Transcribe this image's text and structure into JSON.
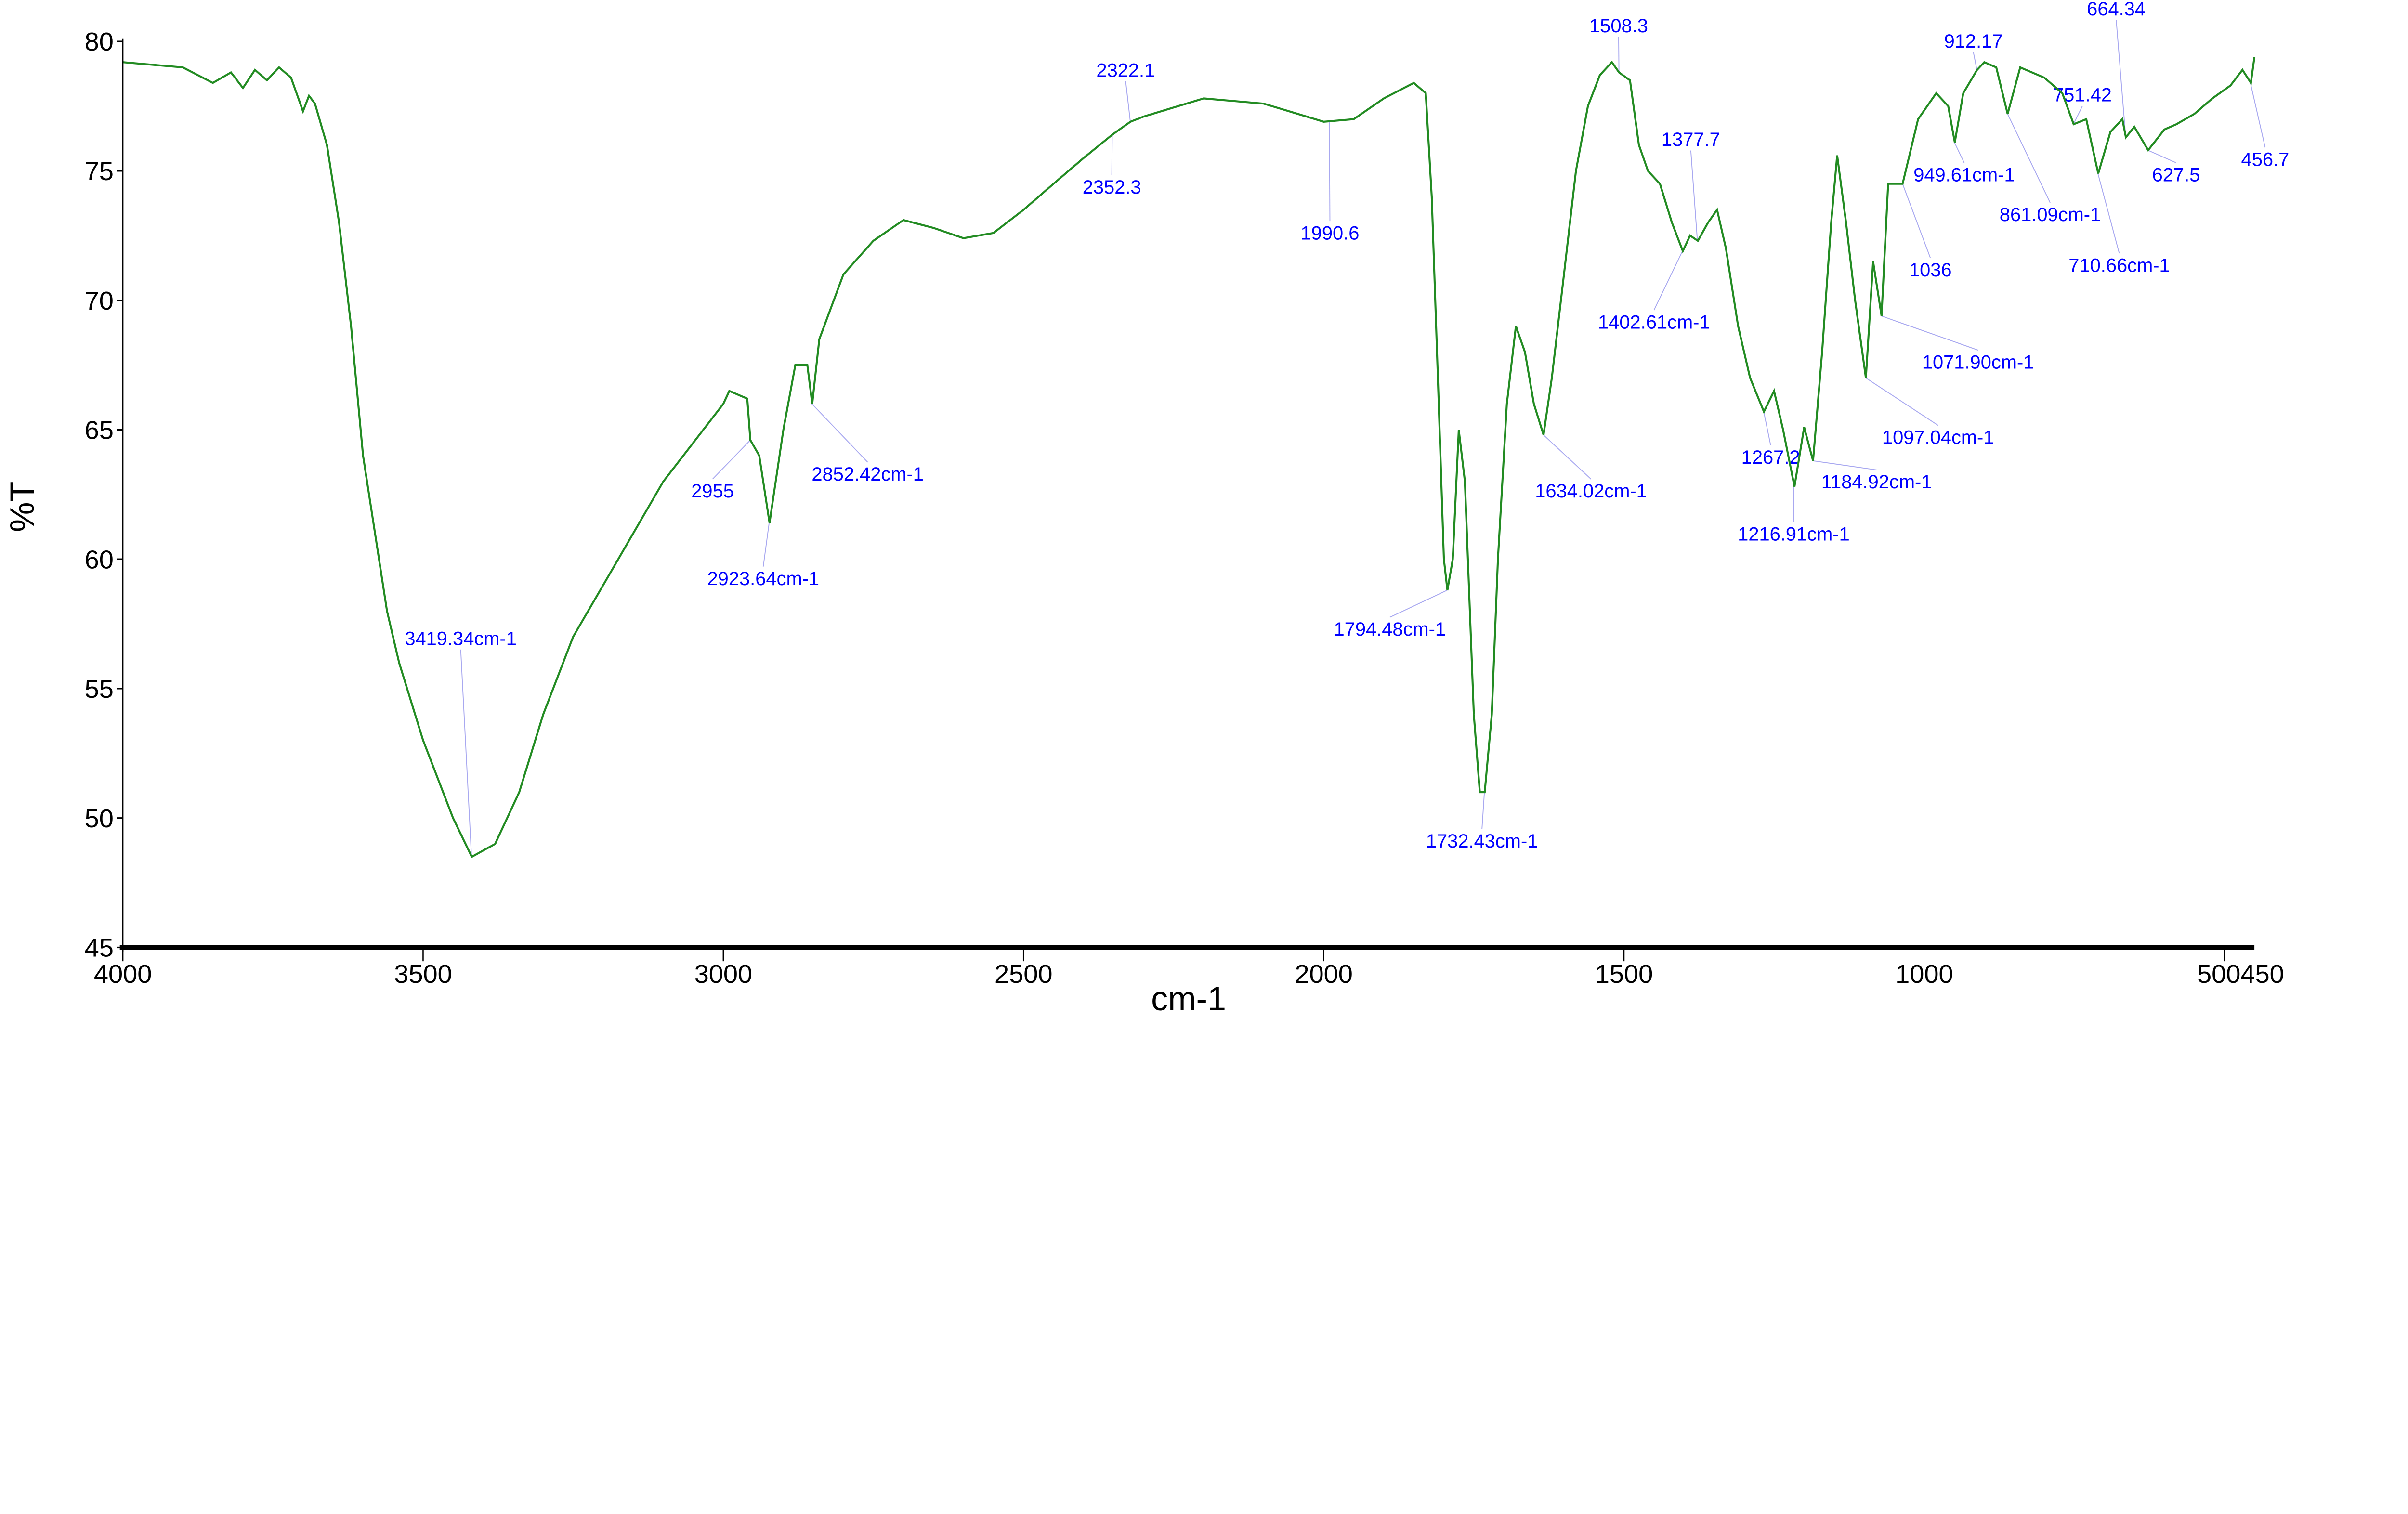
{
  "chart_data": {
    "type": "line",
    "xlabel": "cm-1",
    "ylabel": "%T",
    "xlim": [
      4000,
      450
    ],
    "ylim": [
      45,
      80
    ],
    "x_reversed": true,
    "grid": false,
    "line_color": "#228b22",
    "annotation_color": "#0000ff",
    "xticks": [
      {
        "value": 4000,
        "label": "4000"
      },
      {
        "value": 3500,
        "label": "3500"
      },
      {
        "value": 3000,
        "label": "3000"
      },
      {
        "value": 2500,
        "label": "2500"
      },
      {
        "value": 2000,
        "label": "2000"
      },
      {
        "value": 1500,
        "label": "1500"
      },
      {
        "value": 1000,
        "label": "1000"
      },
      {
        "value": 500,
        "label": "500"
      },
      {
        "value": 450,
        "label": "450"
      }
    ],
    "yticks": [
      {
        "value": 45,
        "label": "45"
      },
      {
        "value": 50,
        "label": "50"
      },
      {
        "value": 55,
        "label": "55"
      },
      {
        "value": 60,
        "label": "60"
      },
      {
        "value": 65,
        "label": "65"
      },
      {
        "value": 70,
        "label": "70"
      },
      {
        "value": 75,
        "label": "75"
      },
      {
        "value": 80,
        "label": "80"
      }
    ],
    "x": [
      4000,
      3900,
      3850,
      3820,
      3800,
      3780,
      3760,
      3740,
      3720,
      3700,
      3690,
      3680,
      3660,
      3640,
      3620,
      3600,
      3580,
      3560,
      3540,
      3500,
      3450,
      3419,
      3380,
      3340,
      3300,
      3250,
      3200,
      3100,
      3000,
      2990,
      2960,
      2955,
      2940,
      2923,
      2900,
      2880,
      2860,
      2852,
      2840,
      2800,
      2750,
      2700,
      2650,
      2600,
      2550,
      2500,
      2450,
      2400,
      2352,
      2340,
      2322,
      2300,
      2200,
      2100,
      2000,
      1950,
      1900,
      1850,
      1830,
      1820,
      1810,
      1800,
      1794,
      1785,
      1775,
      1765,
      1750,
      1740,
      1732,
      1720,
      1710,
      1695,
      1680,
      1665,
      1650,
      1634,
      1620,
      1600,
      1580,
      1560,
      1540,
      1520,
      1508,
      1490,
      1475,
      1460,
      1440,
      1420,
      1402,
      1390,
      1377,
      1360,
      1345,
      1330,
      1310,
      1290,
      1267,
      1250,
      1235,
      1216,
      1200,
      1185,
      1170,
      1155,
      1145,
      1130,
      1115,
      1097,
      1085,
      1071,
      1060,
      1036,
      1010,
      980,
      960,
      949,
      935,
      912,
      900,
      880,
      861,
      840,
      800,
      770,
      751,
      730,
      710,
      690,
      670,
      664,
      650,
      627,
      600,
      580,
      550,
      520,
      490,
      470,
      456,
      450
    ],
    "y": [
      79.2,
      79,
      78.4,
      78.8,
      78.2,
      78.9,
      78.5,
      79,
      78.6,
      77.3,
      77.9,
      77.6,
      76,
      73,
      69,
      64,
      61,
      58,
      56,
      53,
      50,
      48.5,
      49,
      51,
      54,
      57,
      59,
      63,
      66,
      66.5,
      66.2,
      64.6,
      64,
      61.4,
      65,
      67.5,
      67.5,
      66,
      68.5,
      71,
      72.3,
      73.1,
      72.8,
      72.4,
      72.6,
      73.5,
      74.5,
      75.5,
      76.4,
      76.6,
      76.9,
      77.1,
      77.8,
      77.6,
      76.9,
      77,
      77.8,
      78.4,
      78,
      74,
      67,
      60,
      58.8,
      60,
      65,
      63,
      54,
      51,
      51,
      54,
      60,
      66,
      69,
      68,
      66,
      64.8,
      67,
      71,
      75,
      77.5,
      78.7,
      79.2,
      78.8,
      78.5,
      76,
      75,
      74.5,
      73,
      71.9,
      72.5,
      72.3,
      73,
      73.5,
      72,
      69,
      67,
      65.7,
      66.5,
      65,
      62.8,
      65.1,
      63.8,
      68,
      73,
      75.6,
      73,
      70,
      67,
      71.5,
      69.4,
      74.5,
      74.5,
      77,
      78,
      77.5,
      76.1,
      78,
      78.9,
      79.2,
      79,
      77.2,
      79,
      78.6,
      78,
      76.8,
      77,
      74.9,
      76.5,
      77,
      76.3,
      76.7,
      75.8,
      76.6,
      76.8,
      77.2,
      77.8,
      78.3,
      78.9,
      78.4,
      79.4
    ],
    "annotations": [
      {
        "label": "3419.34cm-1",
        "x": 3419.34,
        "y": 48.5
      },
      {
        "label": "2955",
        "x": 2955,
        "y": 64.6
      },
      {
        "label": "2923.64cm-1",
        "x": 2923.64,
        "y": 61.4
      },
      {
        "label": "2852.42cm-1",
        "x": 2852.42,
        "y": 66
      },
      {
        "label": "2322.1",
        "x": 2322.1,
        "y": 76.9
      },
      {
        "label": "2352.3",
        "x": 2352.3,
        "y": 76.4
      },
      {
        "label": "1990.6",
        "x": 1990.6,
        "y": 76.9
      },
      {
        "label": "1794.48cm-1",
        "x": 1794.48,
        "y": 58.8
      },
      {
        "label": "1732.43cm-1",
        "x": 1732.43,
        "y": 51
      },
      {
        "label": "1634.02cm-1",
        "x": 1634.02,
        "y": 64.8
      },
      {
        "label": "1508.3",
        "x": 1508.3,
        "y": 78.8
      },
      {
        "label": "1377.7",
        "x": 1377.7,
        "y": 72.3
      },
      {
        "label": "1402.61cm-1",
        "x": 1402.61,
        "y": 71.9
      },
      {
        "label": "1267.2",
        "x": 1267.2,
        "y": 65.7
      },
      {
        "label": "1216.91cm-1",
        "x": 1216.91,
        "y": 62.8
      },
      {
        "label": "1184.92cm-1",
        "x": 1184.92,
        "y": 63.8
      },
      {
        "label": "1097.04cm-1",
        "x": 1097.04,
        "y": 67
      },
      {
        "label": "1071.90cm-1",
        "x": 1071.9,
        "y": 69.4
      },
      {
        "label": "1036",
        "x": 1036,
        "y": 74.5
      },
      {
        "label": "949.61cm-1",
        "x": 949.61,
        "y": 76.1
      },
      {
        "label": "912.17",
        "x": 912.17,
        "y": 78.9
      },
      {
        "label": "861.09cm-1",
        "x": 861.09,
        "y": 77.2
      },
      {
        "label": "751.42",
        "x": 751.42,
        "y": 76.8
      },
      {
        "label": "710.66cm-1",
        "x": 710.66,
        "y": 74.9
      },
      {
        "label": "664.34",
        "x": 664.34,
        "y": 76.3
      },
      {
        "label": "627.5",
        "x": 627.5,
        "y": 75.8
      },
      {
        "label": "456.7",
        "x": 456.7,
        "y": 78.4
      }
    ]
  }
}
